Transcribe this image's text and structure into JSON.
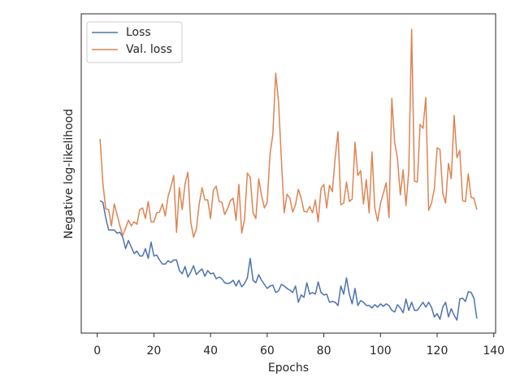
{
  "chart_data": {
    "type": "line",
    "x_label": "Epochs",
    "y_label": "Negative log-likelihood",
    "x": [
      1,
      2,
      3,
      4,
      5,
      6,
      7,
      8,
      9,
      10,
      11,
      12,
      13,
      14,
      15,
      16,
      17,
      18,
      19,
      20,
      21,
      22,
      23,
      24,
      25,
      26,
      27,
      28,
      29,
      30,
      31,
      32,
      33,
      34,
      35,
      36,
      37,
      38,
      39,
      40,
      41,
      42,
      43,
      44,
      45,
      46,
      47,
      48,
      49,
      50,
      51,
      52,
      53,
      54,
      55,
      56,
      57,
      58,
      59,
      60,
      61,
      62,
      63,
      64,
      65,
      66,
      67,
      68,
      69,
      70,
      71,
      72,
      73,
      74,
      75,
      76,
      77,
      78,
      79,
      80,
      81,
      82,
      83,
      84,
      85,
      86,
      87,
      88,
      89,
      90,
      91,
      92,
      93,
      94,
      95,
      96,
      97,
      98,
      99,
      100,
      101,
      102,
      103,
      104,
      105,
      106,
      107,
      108,
      109,
      110,
      111,
      112,
      113,
      114,
      115,
      116,
      117,
      118,
      119,
      120,
      121,
      122,
      123,
      124,
      125,
      126,
      127,
      128,
      129,
      130,
      131,
      132,
      133,
      134
    ],
    "series": [
      {
        "name": "Loss",
        "color": "#4c72b0",
        "values": [
          163,
          161,
          142,
          127,
          127,
          127,
          123,
          124,
          118,
          104,
          114,
          106,
          98,
          101,
          95,
          95,
          104,
          92,
          112,
          95,
          96,
          90,
          85,
          85,
          89,
          87,
          90,
          90,
          77,
          73,
          82,
          69,
          75,
          83,
          72,
          76,
          79,
          70,
          77,
          73,
          74,
          67,
          69,
          67,
          62,
          61,
          62,
          65,
          58,
          65,
          57,
          61,
          68,
          92,
          65,
          62,
          72,
          65,
          60,
          55,
          58,
          59,
          50,
          52,
          60,
          58,
          55,
          53,
          50,
          58,
          38,
          47,
          44,
          62,
          48,
          50,
          48,
          63,
          50,
          47,
          48,
          38,
          39,
          38,
          34,
          58,
          48,
          68,
          48,
          36,
          55,
          34,
          40,
          38,
          34,
          34,
          31,
          35,
          32,
          36,
          33,
          36,
          34,
          28,
          26,
          35,
          31,
          25,
          42,
          28,
          38,
          28,
          28,
          33,
          38,
          32,
          38,
          32,
          20,
          24,
          17,
          32,
          38,
          20,
          30,
          22,
          16,
          42,
          43,
          39,
          51,
          50,
          43,
          18
        ]
      },
      {
        "name": "Val. loss",
        "color": "#dd8452",
        "values": [
          239,
          184,
          153,
          152,
          132,
          159,
          146,
          132,
          120,
          129,
          139,
          132,
          137,
          134,
          152,
          154,
          141,
          162,
          137,
          137,
          148,
          149,
          159,
          144,
          168,
          180,
          194,
          124,
          179,
          152,
          184,
          198,
          137,
          118,
          128,
          159,
          179,
          164,
          164,
          141,
          176,
          181,
          162,
          161,
          146,
          153,
          163,
          166,
          139,
          183,
          123,
          140,
          197,
          192,
          148,
          141,
          190,
          170,
          154,
          161,
          220,
          245,
          320,
          285,
          214,
          148,
          171,
          166,
          149,
          158,
          177,
          166,
          150,
          149,
          156,
          148,
          164,
          137,
          178,
          183,
          154,
          182,
          174,
          216,
          248,
          158,
          160,
          186,
          162,
          165,
          235,
          194,
          200,
          159,
          189,
          148,
          223,
          154,
          138,
          160,
          172,
          185,
          142,
          289,
          235,
          215,
          170,
          201,
          157,
          200,
          374,
          187,
          186,
          257,
          252,
          290,
          151,
          160,
          177,
          228,
          226,
          172,
          160,
          209,
          190,
          268,
          216,
          225,
          163,
          162,
          196,
          167,
          166,
          152
        ]
      }
    ],
    "xlim": [
      -5.65,
      140.65
    ],
    "xticks": [
      0,
      20,
      40,
      60,
      80,
      100,
      120,
      140
    ],
    "ylim": [
      0,
      393
    ],
    "grid": false,
    "legend": "upper left"
  }
}
